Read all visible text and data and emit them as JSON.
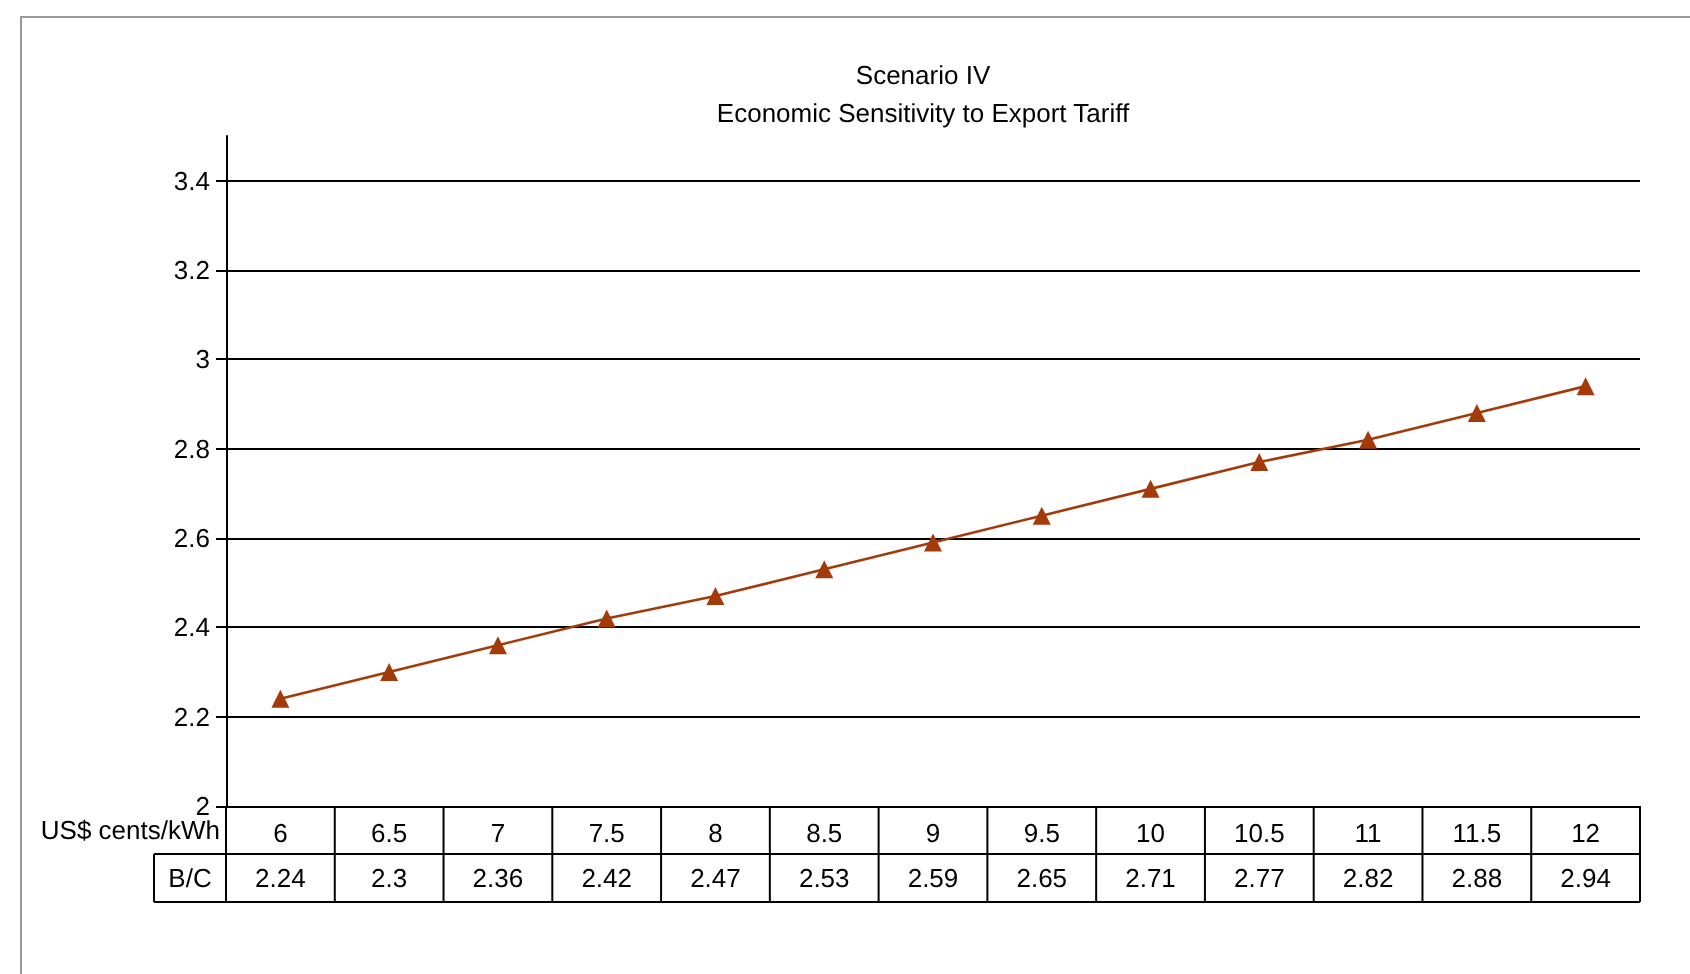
{
  "chart_data": {
    "type": "line",
    "title": "Scenario IV",
    "subtitle": "Economic Sensitivity to Export Tariff",
    "xlabel": "US$ cents/kWh",
    "categories": [
      "6",
      "6.5",
      "7",
      "7.5",
      "8",
      "8.5",
      "9",
      "9.5",
      "10",
      "10.5",
      "11",
      "11.5",
      "12"
    ],
    "series": [
      {
        "name": "B/C",
        "color": "#a33a0a",
        "values": [
          2.24,
          2.3,
          2.36,
          2.42,
          2.47,
          2.53,
          2.59,
          2.65,
          2.71,
          2.77,
          2.82,
          2.88,
          2.94
        ]
      }
    ],
    "ylim": [
      2,
      3.5
    ],
    "yticks": [
      2,
      2.2,
      2.4,
      2.6,
      2.8,
      3,
      3.2,
      3.4
    ],
    "grid": "y",
    "marker": "triangle",
    "line_style": "solid",
    "data_labels": true
  }
}
